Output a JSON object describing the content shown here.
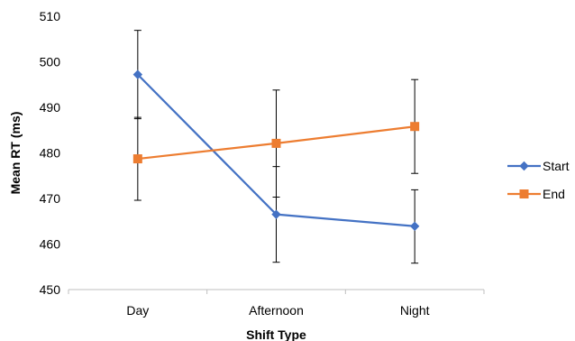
{
  "chart_data": {
    "type": "line",
    "xlabel": "Shift Type",
    "ylabel": "Mean RT (ms)",
    "categories": [
      "Day",
      "Afternoon",
      "Night"
    ],
    "ylim": [
      450,
      510
    ],
    "yticks": [
      450,
      460,
      470,
      480,
      490,
      500,
      510
    ],
    "grid": false,
    "legend_position": "right",
    "series": [
      {
        "name": "Start",
        "color": "#4472C4",
        "marker": "diamond",
        "values": [
          497.2,
          466.5,
          463.9
        ],
        "error_low": [
          487.5,
          456.0,
          455.8
        ],
        "error_high": [
          506.9,
          477.0,
          471.9
        ]
      },
      {
        "name": "End",
        "color": "#ED7D31",
        "marker": "square",
        "values": [
          478.7,
          482.1,
          485.8
        ],
        "error_low": [
          469.6,
          470.3,
          475.5
        ],
        "error_high": [
          487.8,
          493.8,
          496.1
        ]
      }
    ]
  }
}
